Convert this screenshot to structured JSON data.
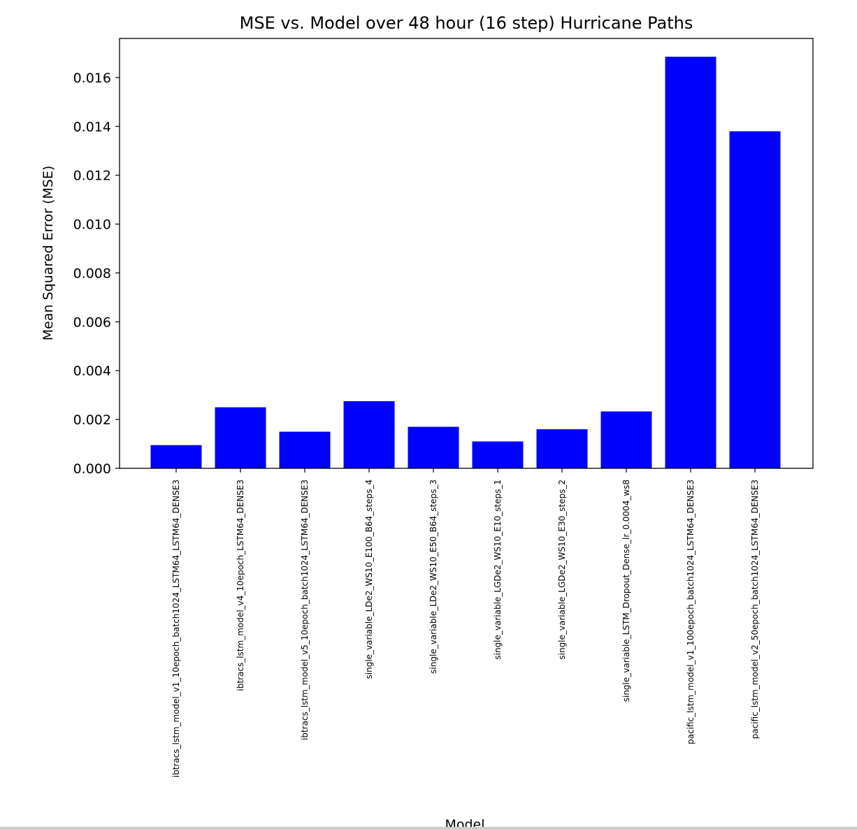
{
  "chart_data": {
    "type": "bar",
    "title": "MSE vs. Model over 48 hour (16 step) Hurricane Paths",
    "xlabel": "Model",
    "ylabel": "Mean Squared Error (MSE)",
    "ylim": [
      0,
      0.0176
    ],
    "yticks": [
      "0.000",
      "0.002",
      "0.004",
      "0.006",
      "0.008",
      "0.010",
      "0.012",
      "0.014",
      "0.016"
    ],
    "categories": [
      "ibtracs_lstm_model_v1_10epoch_batch1024_LSTM64_LSTM64_DENSE3",
      "ibtracs_lstm_model_v4_10epoch_LSTM64_DENSE3",
      "ibtracs_lstm_model_v5_10epoch_batch1024_LSTM64_DENSE3",
      "single_variable_LDe2_WS10_E100_B64_steps_4",
      "single_variable_LDe2_WS10_E50_B64_steps_3",
      "single_variable_LGDe2_WS10_E10_steps_1",
      "single_variable_LGDe2_WS10_E30_steps_2",
      "single_variable_LSTM_Dropout_Dense_lr_0.0004_ws8",
      "pacific_lstm_model_v1_100epoch_batch1024_LSTM64_DENSE3",
      "pacific_lstm_model_v2_50epoch_batch1024_LSTM64_DENSE3"
    ],
    "values": [
      0.00095,
      0.0025,
      0.0015,
      0.00275,
      0.0017,
      0.0011,
      0.0016,
      0.00233,
      0.01685,
      0.0138
    ],
    "bar_color": "#0000ff",
    "grid": false,
    "legend": false
  }
}
